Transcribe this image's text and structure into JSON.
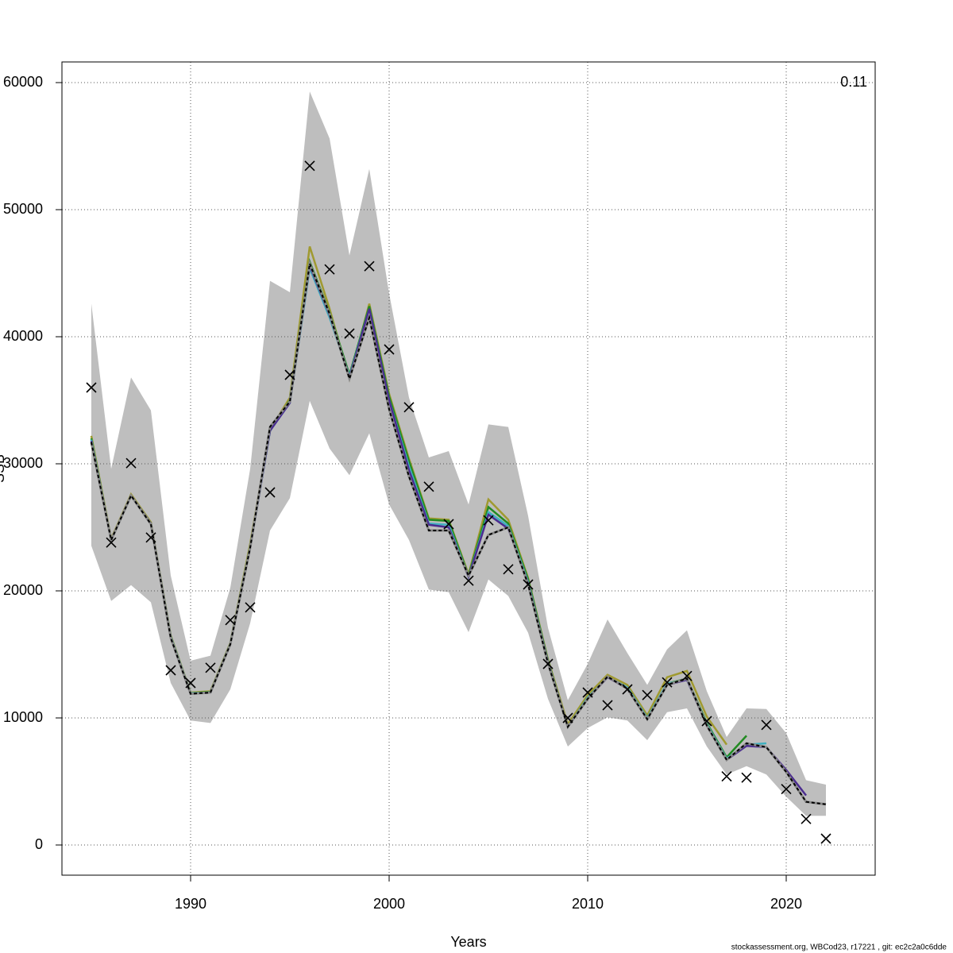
{
  "chart_data": {
    "type": "line",
    "annotation": "0.11",
    "xlabel": "Years",
    "ylabel": "SSB",
    "footer": "stockassessment.org, WBCod23, r17221 , git: ec2c2a0c6dde",
    "x": [
      1985,
      1986,
      1987,
      1988,
      1989,
      1990,
      1991,
      1992,
      1993,
      1994,
      1995,
      1996,
      1997,
      1998,
      1999,
      2000,
      2001,
      2002,
      2003,
      2004,
      2005,
      2006,
      2007,
      2008,
      2009,
      2010,
      2011,
      2012,
      2013,
      2014,
      2015,
      2016,
      2017,
      2018,
      2019,
      2020,
      2021,
      2022
    ],
    "xlim": [
      1983.52,
      2024.48
    ],
    "ylim": [
      -2375,
      61625
    ],
    "xticks": [
      1990,
      2000,
      2010,
      2020
    ],
    "yticks": [
      0,
      10000,
      20000,
      30000,
      40000,
      50000,
      60000
    ],
    "grid": true,
    "band": {
      "color": "#bebebe",
      "upper": [
        42600,
        29600,
        36800,
        34200,
        21200,
        14500,
        14900,
        20250,
        29600,
        44400,
        43500,
        59300,
        55600,
        46400,
        53200,
        43400,
        35200,
        30500,
        31000,
        26800,
        33100,
        32900,
        25900,
        17100,
        11400,
        14250,
        17750,
        15100,
        12600,
        15400,
        16900,
        12100,
        8500,
        10750,
        10700,
        8800,
        5100,
        4750
      ],
      "lower": [
        23550,
        19200,
        20450,
        19100,
        12750,
        9800,
        9600,
        12250,
        17450,
        24750,
        27300,
        34950,
        31200,
        29100,
        32400,
        26800,
        24000,
        20100,
        19900,
        16750,
        20900,
        19600,
        16700,
        11500,
        7750,
        9200,
        10050,
        9800,
        8250,
        10450,
        10750,
        7750,
        5550,
        6200,
        5550,
        3800,
        2300,
        2300
      ]
    },
    "series": [
      {
        "color": "#a09a30",
        "values": [
          32200,
          24100,
          27600,
          25400,
          16500,
          12000,
          12100,
          15900,
          23700,
          32700,
          35200,
          47100,
          42200,
          36700,
          42600,
          35500,
          30400,
          25700,
          25600,
          21300,
          27200,
          25600,
          21000,
          14600,
          9500,
          11800,
          13400,
          12600,
          10200,
          13200,
          13700,
          10100,
          7900,
          null,
          null,
          null,
          null,
          null
        ]
      },
      {
        "color": "#228b22",
        "values": [
          32000,
          24000,
          27500,
          25300,
          16400,
          11950,
          12050,
          15850,
          23500,
          32600,
          35000,
          45900,
          41900,
          37000,
          42400,
          35300,
          30200,
          25600,
          25500,
          21200,
          26600,
          25300,
          20900,
          14500,
          9300,
          11600,
          13200,
          12400,
          10000,
          12700,
          13100,
          9600,
          6900,
          8600,
          null,
          null,
          null,
          null
        ]
      },
      {
        "color": "#40b0c0",
        "values": [
          31900,
          24000,
          27500,
          25300,
          16400,
          11950,
          12000,
          15800,
          23400,
          32600,
          34800,
          45400,
          41500,
          36900,
          42200,
          35000,
          29800,
          25300,
          25200,
          21100,
          26200,
          25100,
          20700,
          14400,
          9300,
          11600,
          13200,
          12400,
          10000,
          12700,
          13000,
          9500,
          6800,
          7900,
          8000,
          null,
          null,
          null
        ]
      },
      {
        "color": "#4b2c8f",
        "values": [
          31800,
          24000,
          27500,
          25300,
          16350,
          11900,
          12000,
          15800,
          23400,
          32600,
          34800,
          45600,
          41700,
          36800,
          42200,
          35000,
          29500,
          25200,
          25000,
          21100,
          26000,
          24900,
          20600,
          14400,
          9300,
          11500,
          13200,
          12300,
          9900,
          12600,
          13000,
          9400,
          6700,
          7800,
          7700,
          5900,
          3900,
          null
        ]
      },
      {
        "color": "#000000",
        "dashed": true,
        "values": [
          31700,
          24000,
          27500,
          25250,
          16300,
          11900,
          12000,
          15800,
          23400,
          32900,
          34900,
          45750,
          41800,
          36700,
          41500,
          34300,
          29000,
          24750,
          24750,
          21200,
          24400,
          25000,
          20500,
          14300,
          9300,
          11500,
          13250,
          12300,
          9900,
          12600,
          13100,
          9400,
          6700,
          8000,
          7700,
          5750,
          3400,
          3200
        ]
      }
    ],
    "observations": {
      "color": "#000000",
      "values": [
        36000,
        23800,
        30050,
        24200,
        13750,
        12750,
        13950,
        17700,
        18700,
        27750,
        37000,
        53450,
        45300,
        40250,
        45550,
        39000,
        34450,
        28200,
        25250,
        20800,
        25550,
        21700,
        20500,
        14250,
        10000,
        12000,
        11000,
        12250,
        11800,
        12800,
        13300,
        9750,
        5400,
        5300,
        9450,
        4400,
        2050,
        500
      ]
    }
  }
}
